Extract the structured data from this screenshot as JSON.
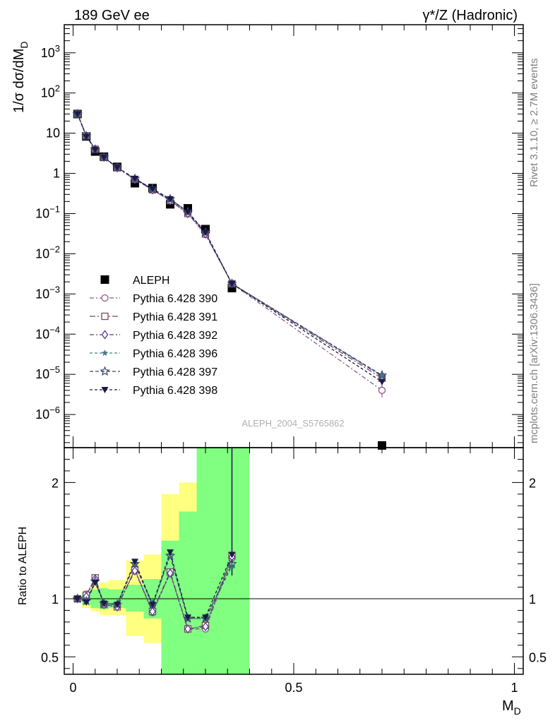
{
  "header": {
    "left": "189 GeV ee",
    "right": "γ*/Z (Hadronic)"
  },
  "side_labels": {
    "rivet": "Rivet 3.1.10, ≥ 2.7M events",
    "mcplots": "mcplots.cern.ch [arXiv:1306.3436]"
  },
  "watermark": "ALEPH_2004_S5765862",
  "colors": {
    "data": "#000000",
    "p390": "#8e5a8a",
    "p391": "#7a4a5a",
    "p392": "#5a3a9a",
    "p396": "#4a7a8a",
    "p397": "#3a4a6a",
    "p398": "#1a1a4a",
    "band_outer": "#ffff80",
    "band_inner": "#80ff80"
  },
  "chart_data": [
    {
      "type": "scatter",
      "panel": "main",
      "ylabel": "1/σ dσ/dM_D",
      "yscale": "log",
      "ylim": [
        1.5e-07,
        5000
      ],
      "xlim": [
        -0.02,
        1.02
      ],
      "yticks": [
        {
          "v": 1e-06,
          "b": "10",
          "e": "−6"
        },
        {
          "v": 1e-05,
          "b": "10",
          "e": "−5"
        },
        {
          "v": 0.0001,
          "b": "10",
          "e": "−4"
        },
        {
          "v": 0.001,
          "b": "10",
          "e": "−3"
        },
        {
          "v": 0.01,
          "b": "10",
          "e": "−2"
        },
        {
          "v": 0.1,
          "b": "10",
          "e": "−1"
        },
        {
          "v": 1,
          "b": "1",
          "e": ""
        },
        {
          "v": 10,
          "b": "10",
          "e": ""
        },
        {
          "v": 100,
          "b": "10",
          "e": "2"
        },
        {
          "v": 1000,
          "b": "10",
          "e": "3"
        }
      ],
      "x": [
        0.01,
        0.03,
        0.05,
        0.07,
        0.1,
        0.14,
        0.18,
        0.22,
        0.26,
        0.3,
        0.36,
        0.7
      ],
      "data": [
        30,
        8.3,
        3.5,
        2.6,
        1.45,
        0.57,
        0.43,
        0.17,
        0.135,
        0.041,
        0.0014,
        1.7e-07
      ],
      "legend_position": "left-middle",
      "series": [
        {
          "name": "ALEPH",
          "key": "data",
          "marker": "square",
          "dash": ""
        },
        {
          "name": "Pythia 6.428 390",
          "key": "p390",
          "marker": "circle",
          "dash": "6,3,2,3",
          "values": [
            30,
            8.6,
            4.0,
            2.5,
            1.38,
            0.72,
            0.39,
            0.21,
            0.1,
            0.03,
            0.0018,
            4e-06
          ]
        },
        {
          "name": "Pythia 6.428 391",
          "key": "p391",
          "marker": "square-open",
          "dash": "8,3,2,3",
          "values": [
            30,
            8.6,
            4.0,
            2.5,
            1.38,
            0.71,
            0.39,
            0.21,
            0.1,
            0.031,
            0.0018,
            8e-06
          ]
        },
        {
          "name": "Pythia 6.428 392",
          "key": "p392",
          "marker": "diamond",
          "dash": "6,3,2,3",
          "values": [
            30,
            8.6,
            4.0,
            2.5,
            1.38,
            0.71,
            0.39,
            0.21,
            0.1,
            0.031,
            0.0018,
            9e-06
          ]
        },
        {
          "name": "Pythia 6.428 396",
          "key": "p396",
          "marker": "star-filled",
          "dash": "4,3",
          "values": [
            30,
            8.4,
            3.9,
            2.5,
            1.4,
            0.74,
            0.41,
            0.23,
            0.11,
            0.034,
            0.0018,
            9.3e-06
          ]
        },
        {
          "name": "Pythia 6.428 397",
          "key": "p397",
          "marker": "star-open",
          "dash": "5,3",
          "values": [
            30,
            8.4,
            3.9,
            2.5,
            1.4,
            0.74,
            0.41,
            0.23,
            0.11,
            0.034,
            0.0018,
            9.5e-06
          ]
        },
        {
          "name": "Pythia 6.428 398",
          "key": "p398",
          "marker": "triangle-down",
          "dash": "4,3",
          "values": [
            30,
            8.3,
            3.9,
            2.5,
            1.4,
            0.74,
            0.41,
            0.23,
            0.11,
            0.034,
            0.0018,
            6.5e-06
          ]
        }
      ]
    },
    {
      "type": "scatter",
      "panel": "ratio",
      "ylabel": "Ratio to ALEPH",
      "xlabel": "M_D",
      "ylim": [
        0.35,
        2.3
      ],
      "xlim": [
        -0.02,
        1.02
      ],
      "yticks": [
        0.5,
        1,
        2
      ],
      "xticks": [
        {
          "v": 0,
          "label": "0"
        },
        {
          "v": 0.5,
          "label": "0.5"
        },
        {
          "v": 1,
          "label": "1"
        }
      ],
      "bands": [
        {
          "x0": 0.0,
          "x1": 0.02,
          "outer": [
            0.97,
            1.03
          ],
          "inner": [
            0.98,
            1.02
          ]
        },
        {
          "x0": 0.02,
          "x1": 0.04,
          "outer": [
            0.92,
            1.07
          ],
          "inner": [
            0.95,
            1.05
          ]
        },
        {
          "x0": 0.04,
          "x1": 0.06,
          "outer": [
            0.89,
            1.12
          ],
          "inner": [
            0.92,
            1.08
          ]
        },
        {
          "x0": 0.06,
          "x1": 0.08,
          "outer": [
            0.86,
            1.14
          ],
          "inner": [
            0.91,
            1.09
          ]
        },
        {
          "x0": 0.08,
          "x1": 0.12,
          "outer": [
            0.86,
            1.16
          ],
          "inner": [
            0.92,
            1.08
          ]
        },
        {
          "x0": 0.12,
          "x1": 0.16,
          "outer": [
            0.68,
            1.33
          ],
          "inner": [
            0.89,
            1.12
          ]
        },
        {
          "x0": 0.16,
          "x1": 0.2,
          "outer": [
            0.62,
            1.38
          ],
          "inner": [
            0.83,
            1.17
          ]
        },
        {
          "x0": 0.2,
          "x1": 0.24,
          "outer": [
            0.35,
            1.9
          ],
          "inner": [
            0.35,
            1.5
          ]
        },
        {
          "x0": 0.24,
          "x1": 0.28,
          "outer": [
            0.35,
            2.0
          ],
          "inner": [
            0.35,
            1.75
          ]
        },
        {
          "x0": 0.28,
          "x1": 0.32,
          "outer": [
            0.35,
            2.3
          ],
          "inner": [
            0.35,
            2.3
          ]
        },
        {
          "x0": 0.32,
          "x1": 0.4,
          "outer": [
            0.35,
            2.3
          ],
          "inner": [
            0.35,
            2.3
          ]
        }
      ],
      "x": [
        0.01,
        0.03,
        0.05,
        0.07,
        0.1,
        0.14,
        0.18,
        0.22,
        0.26,
        0.3,
        0.36
      ],
      "series": [
        {
          "key": "p390",
          "values": [
            1.0,
            1.04,
            1.18,
            0.95,
            0.93,
            1.25,
            0.88,
            1.22,
            0.74,
            0.74,
            1.35
          ]
        },
        {
          "key": "p391",
          "values": [
            1.0,
            1.03,
            1.18,
            0.95,
            0.93,
            1.25,
            0.89,
            1.23,
            0.74,
            0.77,
            1.37
          ]
        },
        {
          "key": "p392",
          "values": [
            1.0,
            1.02,
            1.17,
            0.95,
            0.93,
            1.24,
            0.89,
            1.22,
            0.74,
            0.76,
            1.36
          ]
        },
        {
          "key": "p396",
          "values": [
            1.0,
            0.98,
            1.14,
            0.96,
            0.95,
            1.3,
            0.94,
            1.38,
            0.83,
            0.83,
            1.28
          ]
        },
        {
          "key": "p397",
          "values": [
            1.0,
            0.98,
            1.15,
            0.96,
            0.95,
            1.3,
            0.95,
            1.37,
            0.83,
            0.83,
            1.3
          ]
        },
        {
          "key": "p398",
          "values": [
            1.0,
            0.97,
            1.14,
            0.96,
            0.95,
            1.32,
            0.95,
            1.4,
            0.84,
            0.84,
            1.38
          ]
        }
      ]
    }
  ]
}
